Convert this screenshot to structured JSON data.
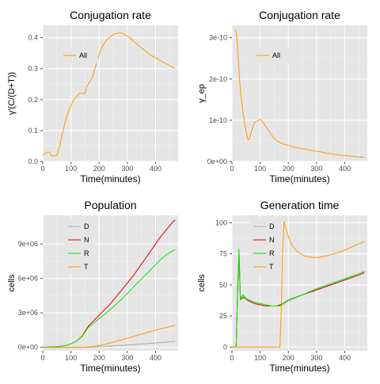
{
  "chart_data": [
    {
      "type": "line",
      "title": "Conjugation rate",
      "xlabel": "Time(minutes)",
      "ylabel": "γ'(C/(D+T))",
      "xlim": [
        0,
        480
      ],
      "ylim": [
        0,
        0.44
      ],
      "xticks": [
        0,
        100,
        200,
        300,
        400
      ],
      "yticks": [
        0.0,
        0.1,
        0.2,
        0.3,
        0.4
      ],
      "ytick_labels": [
        "0.0",
        "0.1",
        "0.2",
        "0.3",
        "0.4"
      ],
      "grid": true,
      "legend": "top-left",
      "series": [
        {
          "name": "All",
          "color": "#ff9900",
          "x": [
            0,
            15,
            25,
            30,
            40,
            50,
            60,
            70,
            80,
            90,
            100,
            110,
            120,
            130,
            140,
            150,
            155,
            165,
            175,
            185,
            195,
            205,
            220,
            235,
            250,
            265,
            280,
            290,
            300,
            310,
            320,
            340,
            360,
            380,
            400,
            420,
            440,
            460,
            470
          ],
          "y": [
            0.02,
            0.03,
            0.03,
            0.02,
            0.018,
            0.02,
            0.05,
            0.09,
            0.13,
            0.16,
            0.18,
            0.2,
            0.21,
            0.22,
            0.22,
            0.22,
            0.24,
            0.255,
            0.27,
            0.3,
            0.33,
            0.36,
            0.385,
            0.4,
            0.41,
            0.415,
            0.415,
            0.41,
            0.405,
            0.4,
            0.39,
            0.375,
            0.36,
            0.345,
            0.335,
            0.325,
            0.315,
            0.305,
            0.3
          ]
        }
      ]
    },
    {
      "type": "line",
      "title": "Conjugation rate",
      "xlabel": "Time(minutes)",
      "ylabel": "γ_ep",
      "xlim": [
        0,
        480
      ],
      "ylim": [
        0,
        3.3e-10
      ],
      "xticks": [
        0,
        100,
        200,
        300,
        400
      ],
      "yticks": [
        0,
        1e-10,
        2e-10,
        3e-10
      ],
      "ytick_labels": [
        "0e+00",
        "1e-10",
        "2e-10",
        "3e-10"
      ],
      "grid": true,
      "legend": "top-left",
      "series": [
        {
          "name": "All",
          "color": "#ff9900",
          "x": [
            10,
            15,
            20,
            25,
            30,
            40,
            50,
            55,
            60,
            70,
            80,
            90,
            100,
            110,
            120,
            130,
            140,
            150,
            160,
            170,
            180,
            200,
            220,
            250,
            280,
            300,
            340,
            380,
            420,
            450,
            470
          ],
          "y": [
            3.2e-10,
            3.15e-10,
            2.8e-10,
            2.2e-10,
            1.7e-10,
            1.15e-10,
            7.5e-11,
            5.5e-11,
            5.2e-11,
            7.5e-11,
            9.5e-11,
            9.8e-11,
            1.02e-10,
            9.5e-11,
            8.5e-11,
            7.5e-11,
            6.5e-11,
            5.5e-11,
            5e-11,
            4.6e-11,
            4.3e-11,
            3.9e-11,
            3.5e-11,
            3.1e-11,
            2.7e-11,
            2.5e-11,
            2e-11,
            1.6e-11,
            1.3e-11,
            1.1e-11,
            1e-11
          ]
        }
      ]
    },
    {
      "type": "line",
      "title": "Population",
      "xlabel": "Time(minutes)",
      "ylabel": "cells",
      "xlim": [
        0,
        480
      ],
      "ylim": [
        -300000.0,
        11500000.0
      ],
      "xticks": [
        0,
        100,
        200,
        300,
        400
      ],
      "yticks": [
        0,
        3000000.0,
        6000000.0,
        9000000.0
      ],
      "ytick_labels": [
        "0e+00",
        "3e+06",
        "6e+06",
        "9e+06"
      ],
      "grid": true,
      "legend": "top-left",
      "series": [
        {
          "name": "D",
          "color": "#aaaaaa",
          "x": [
            0,
            50,
            100,
            150,
            200,
            250,
            300,
            350,
            400,
            450,
            470
          ],
          "y": [
            0,
            0,
            0,
            0,
            50000,
            120000,
            200000,
            280000,
            380000,
            480000,
            520000
          ]
        },
        {
          "name": "N",
          "color": "#dd0000",
          "x": [
            0,
            50,
            80,
            100,
            120,
            140,
            160,
            180,
            200,
            220,
            240,
            260,
            280,
            300,
            320,
            340,
            360,
            380,
            400,
            420,
            440,
            460,
            470
          ],
          "y": [
            0,
            50000,
            150000,
            300000,
            550000,
            1000000,
            1800000,
            2300000,
            2800000,
            3300000,
            3800000,
            4400000,
            5000000,
            5600000,
            6200000,
            6900000,
            7600000,
            8300000,
            9000000,
            9700000,
            10300000,
            10900000,
            11100000
          ]
        },
        {
          "name": "R",
          "color": "#00ee00",
          "x": [
            0,
            50,
            80,
            100,
            120,
            140,
            160,
            180,
            200,
            220,
            240,
            260,
            280,
            300,
            320,
            340,
            360,
            380,
            400,
            420,
            440,
            460,
            470
          ],
          "y": [
            0,
            50000,
            150000,
            300000,
            550000,
            950000,
            1700000,
            2100000,
            2500000,
            2900000,
            3300000,
            3750000,
            4200000,
            4700000,
            5200000,
            5700000,
            6200000,
            6700000,
            7200000,
            7700000,
            8100000,
            8400000,
            8500000
          ]
        },
        {
          "name": "T",
          "color": "#ff9900",
          "x": [
            0,
            100,
            150,
            170,
            200,
            250,
            300,
            350,
            400,
            450,
            470
          ],
          "y": [
            0,
            0,
            20000,
            50000,
            150000,
            450000,
            800000,
            1150000,
            1500000,
            1800000,
            1900000
          ]
        }
      ]
    },
    {
      "type": "line",
      "title": "Generation time",
      "xlabel": "Time(minutes)",
      "ylabel": "cells",
      "xlim": [
        0,
        480
      ],
      "ylim": [
        -3,
        106
      ],
      "xticks": [
        0,
        100,
        200,
        300,
        400
      ],
      "yticks": [
        0,
        25,
        50,
        75,
        100
      ],
      "ytick_labels": [
        "0",
        "25",
        "50",
        "75",
        "100"
      ],
      "grid": true,
      "legend": "top-left",
      "series": [
        {
          "name": "D",
          "color": "#aaaaaa",
          "x": [
            15,
            20,
            25,
            30,
            40,
            50,
            60,
            80,
            100,
            120,
            140,
            160,
            170,
            180,
            200,
            250,
            300,
            350,
            400,
            450,
            470
          ],
          "y": [
            0,
            40,
            70,
            40,
            42,
            38,
            37,
            36,
            35,
            34,
            33,
            33,
            33,
            34,
            37,
            42,
            46,
            50,
            54,
            58,
            60
          ]
        },
        {
          "name": "N",
          "color": "#dd0000",
          "x": [
            15,
            20,
            25,
            30,
            40,
            50,
            60,
            80,
            100,
            120,
            140,
            160,
            170,
            180,
            200,
            250,
            300,
            350,
            400,
            450,
            470
          ],
          "y": [
            0,
            45,
            75,
            38,
            40,
            39,
            37,
            35,
            34,
            33,
            33,
            33,
            34,
            35,
            38,
            42,
            46,
            50,
            54,
            58,
            60
          ]
        },
        {
          "name": "R",
          "color": "#00ee00",
          "x": [
            0,
            15,
            20,
            25,
            30,
            40,
            50,
            60,
            80,
            100,
            120,
            140,
            160,
            170,
            180,
            200,
            250,
            300,
            350,
            400,
            450,
            470
          ],
          "y": [
            0,
            0,
            45,
            79,
            38,
            42,
            39,
            38,
            36,
            35,
            34,
            33,
            33,
            33,
            35,
            38,
            42,
            47,
            51,
            55,
            59,
            61
          ]
        },
        {
          "name": "T",
          "color": "#ff9900",
          "x": [
            0,
            170,
            175,
            180,
            185,
            195,
            210,
            230,
            260,
            290,
            300,
            330,
            360,
            390,
            420,
            450,
            470
          ],
          "y": [
            0,
            0,
            30,
            80,
            101,
            92,
            83,
            77,
            73,
            72,
            72,
            73,
            75,
            77,
            80,
            83,
            85
          ]
        }
      ]
    }
  ]
}
